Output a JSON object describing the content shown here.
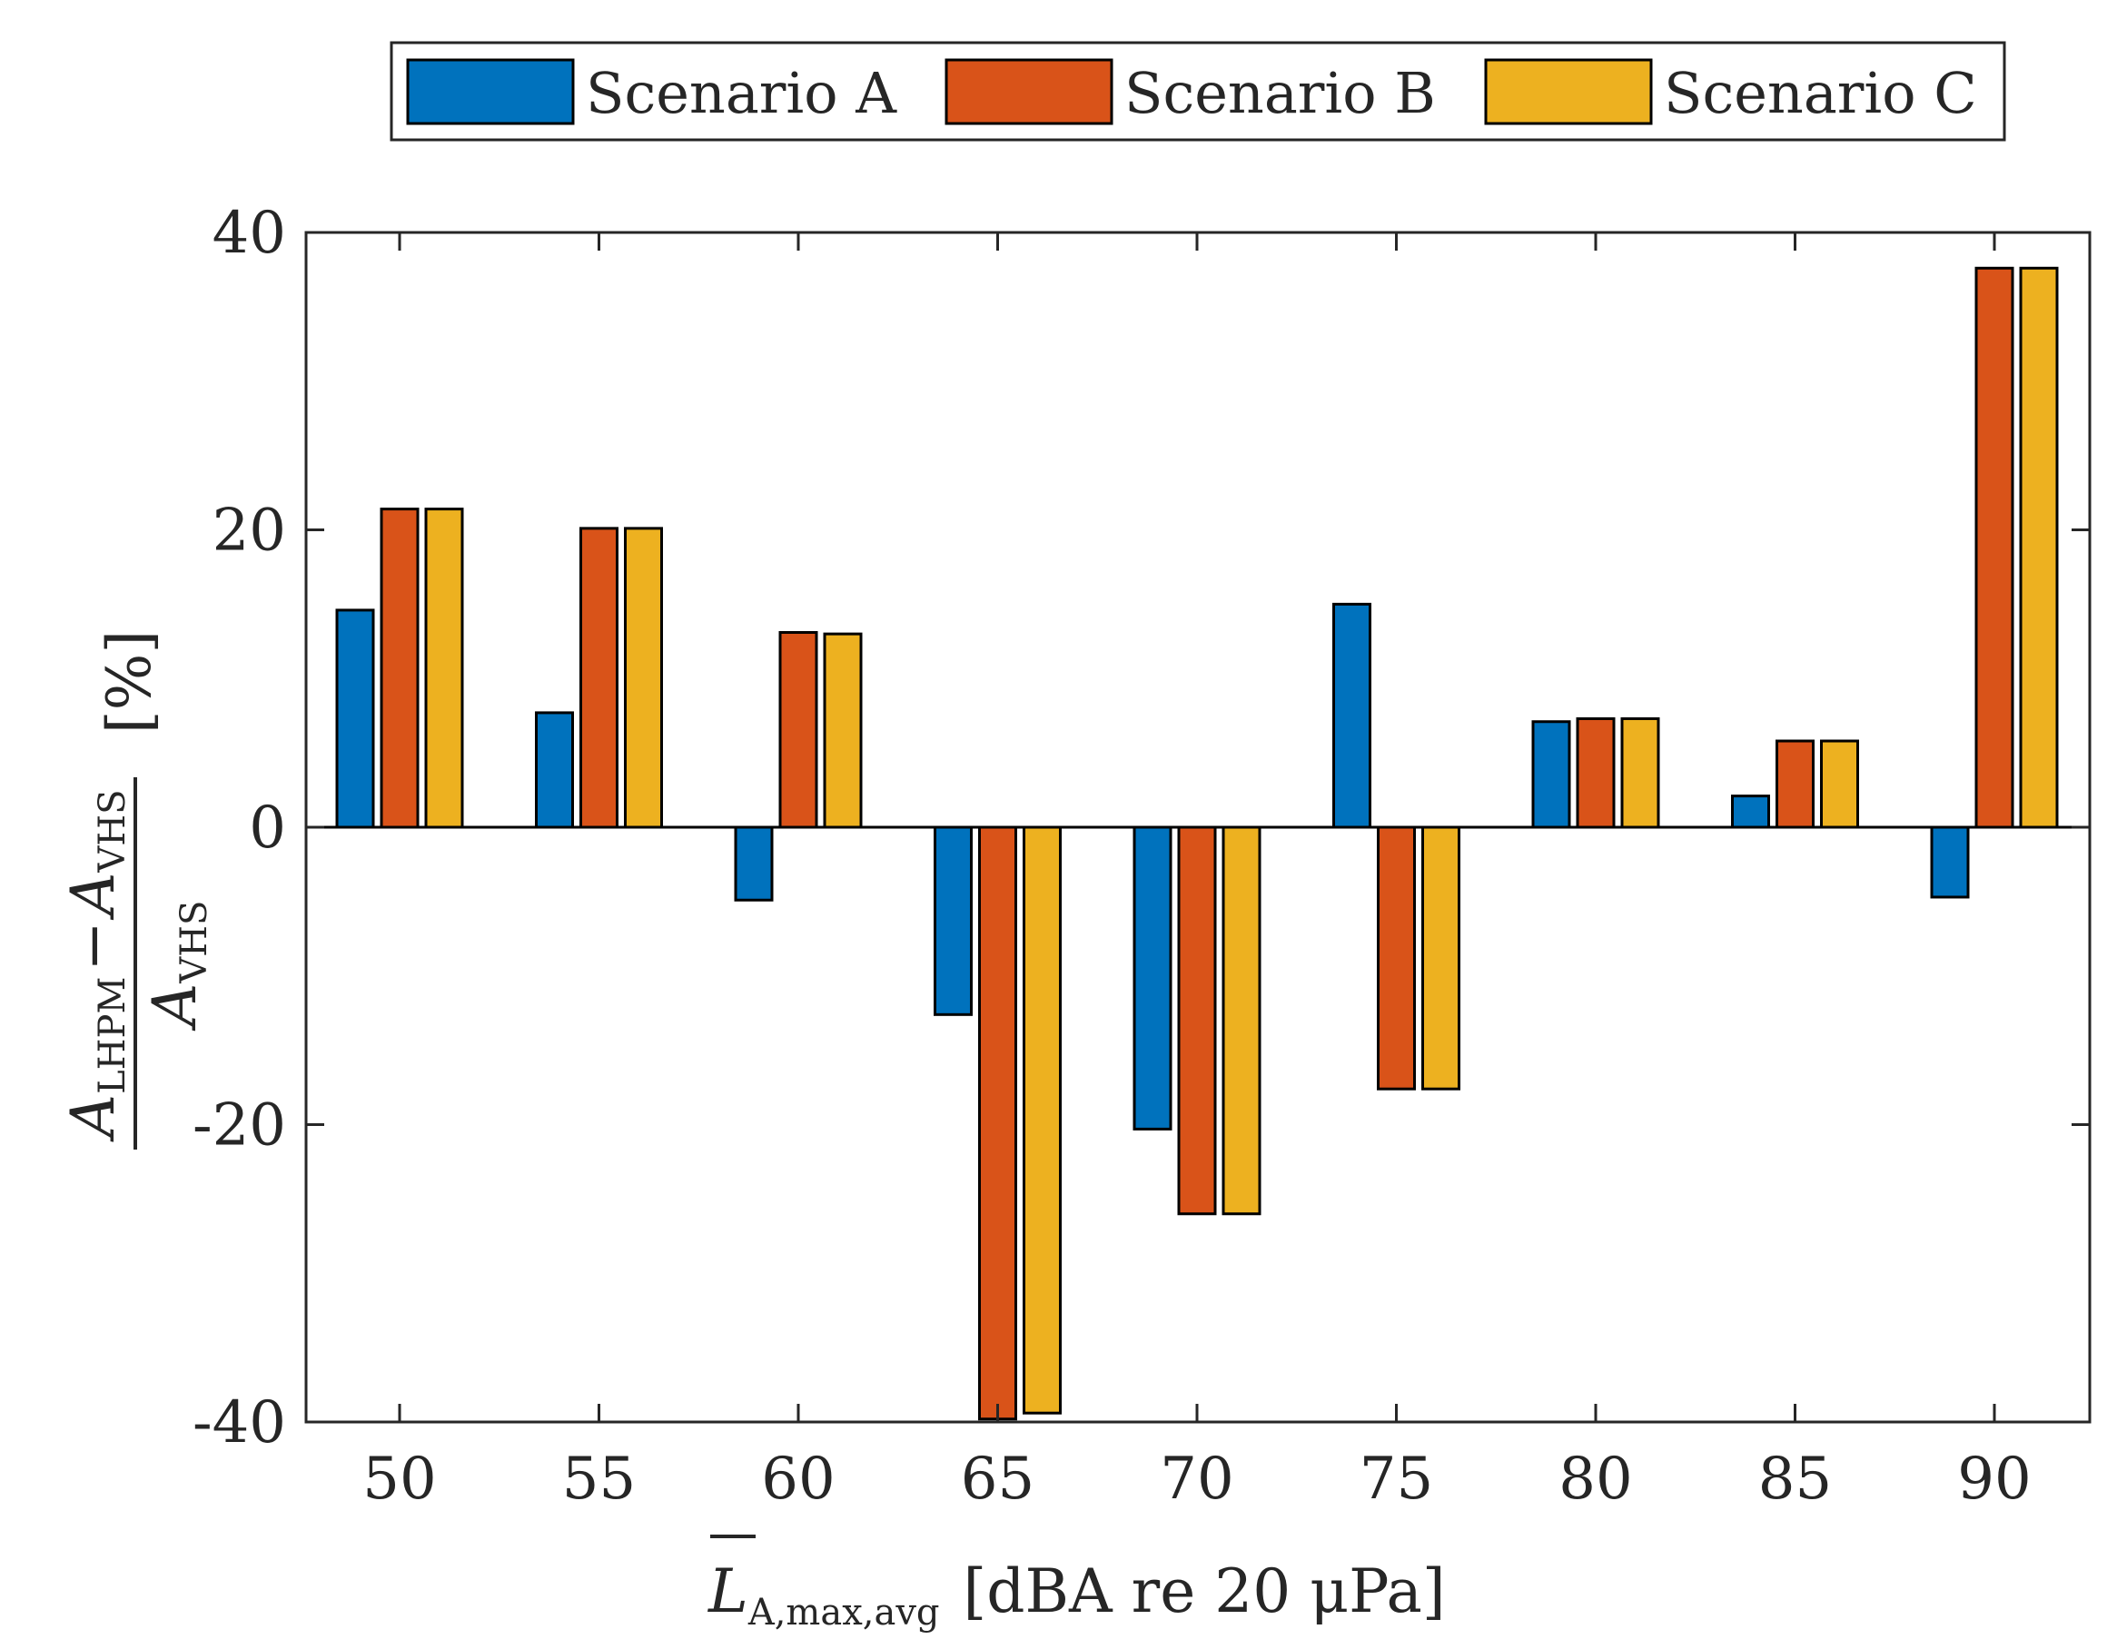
{
  "chart_data": {
    "type": "bar",
    "categories": [
      "50",
      "55",
      "60",
      "65",
      "70",
      "75",
      "80",
      "85",
      "90"
    ],
    "series": [
      {
        "name": "Scenario A",
        "color": "#0072BD",
        "values": [
          14.6,
          7.7,
          -4.9,
          -12.6,
          -20.3,
          15.0,
          7.1,
          2.1,
          -4.7
        ]
      },
      {
        "name": "Scenario B",
        "color": "#D95319",
        "values": [
          21.4,
          20.1,
          13.1,
          -39.8,
          -26.0,
          -17.6,
          7.3,
          5.8,
          37.6
        ]
      },
      {
        "name": "Scenario C",
        "color": "#EDB120",
        "values": [
          21.4,
          20.1,
          13.0,
          -39.4,
          -26.0,
          -17.6,
          7.3,
          5.8,
          37.6
        ]
      }
    ],
    "ylim": [
      -40,
      40
    ],
    "yticks": [
      "-40",
      "-20",
      "0",
      "20",
      "40"
    ],
    "ylabel": {
      "numerator_main": "A",
      "numerator_sub1": "LHPM",
      "minus": "−",
      "numerator_main2": "A",
      "numerator_sub2": "VHS",
      "denominator_main": "A",
      "denominator_sub": "VHS",
      "unit": "[%]"
    },
    "xlabel": {
      "main": "L",
      "sub": "A,max,avg",
      "rest": "[dBA re 20 μPa]"
    },
    "legend": [
      "Scenario A",
      "Scenario B",
      "Scenario C"
    ],
    "legend_position": "top"
  }
}
